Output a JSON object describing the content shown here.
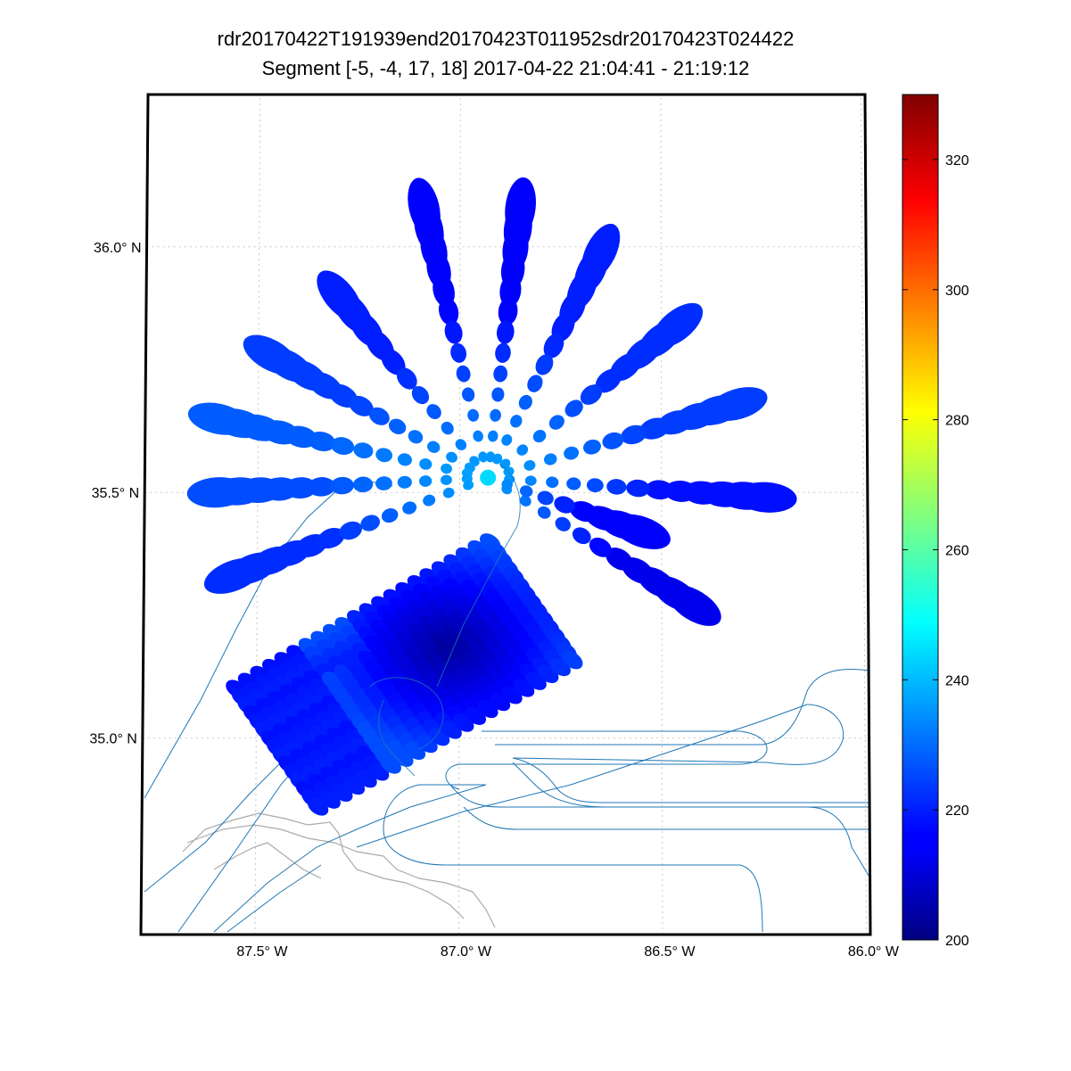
{
  "title": "rdr20170422T191939end20170423T011952sdr20170423T024422",
  "subtitle": "Segment [-5, -4, 17, 18] 2017-04-22 21:04:41 - 21:19:12",
  "map": {
    "lon_range": [
      -87.78,
      -85.99
    ],
    "lat_range": [
      34.6,
      36.31
    ],
    "lat_ticks": [
      {
        "value": 36.0,
        "label": "36.0° N"
      },
      {
        "value": 35.5,
        "label": "35.5° N"
      },
      {
        "value": 35.0,
        "label": "35.0° N"
      }
    ],
    "lon_ticks": [
      {
        "value": -87.5,
        "label": "87.5° W"
      },
      {
        "value": -87.0,
        "label": "87.0° W"
      },
      {
        "value": -86.5,
        "label": "86.5° W"
      },
      {
        "value": -86.0,
        "label": "86.0° W"
      }
    ],
    "grid": true,
    "gridline_style": "dotted",
    "observation_center": {
      "lon": -86.93,
      "lat": 35.53
    },
    "radial_spokes": [
      {
        "end_lon": -87.09,
        "end_lat": 36.08,
        "value": 216
      },
      {
        "end_lon": -86.85,
        "end_lat": 36.08,
        "value": 216
      },
      {
        "end_lon": -86.65,
        "end_lat": 35.99,
        "value": 220
      },
      {
        "end_lon": -86.46,
        "end_lat": 35.84,
        "value": 222
      },
      {
        "end_lon": -86.31,
        "end_lat": 35.68,
        "value": 224
      },
      {
        "end_lon": -86.24,
        "end_lat": 35.49,
        "value": 218
      },
      {
        "end_lon": -86.42,
        "end_lat": 35.27,
        "value": 214
      },
      {
        "end_lon": -86.55,
        "end_lat": 35.42,
        "value": 216
      },
      {
        "end_lon": -87.3,
        "end_lat": 35.9,
        "value": 220
      },
      {
        "end_lon": -87.47,
        "end_lat": 35.78,
        "value": 224
      },
      {
        "end_lon": -87.6,
        "end_lat": 35.65,
        "value": 228
      },
      {
        "end_lon": -87.6,
        "end_lat": 35.5,
        "value": 226
      },
      {
        "end_lon": -87.56,
        "end_lat": 35.33,
        "value": 222
      }
    ],
    "scan_block": {
      "start_lon": -87.55,
      "start_lat": 35.1,
      "col_step_lon": 0.0298,
      "col_step_lat": 0.0142,
      "row_step_lon": 0.0145,
      "row_step_lat": -0.0171,
      "columns": 22,
      "rows": 15,
      "value_min": 203,
      "value_max": 226
    },
    "county_border_color": "#aaaaaa",
    "road_color": "#1f77b4"
  },
  "colorbar": {
    "min": 200,
    "max": 330,
    "ticks": [
      {
        "value": 200,
        "label": "200"
      },
      {
        "value": 220,
        "label": "220"
      },
      {
        "value": 240,
        "label": "240"
      },
      {
        "value": 260,
        "label": "260"
      },
      {
        "value": 280,
        "label": "280"
      },
      {
        "value": 300,
        "label": "300"
      },
      {
        "value": 320,
        "label": "320"
      }
    ],
    "colormap": "jet"
  }
}
